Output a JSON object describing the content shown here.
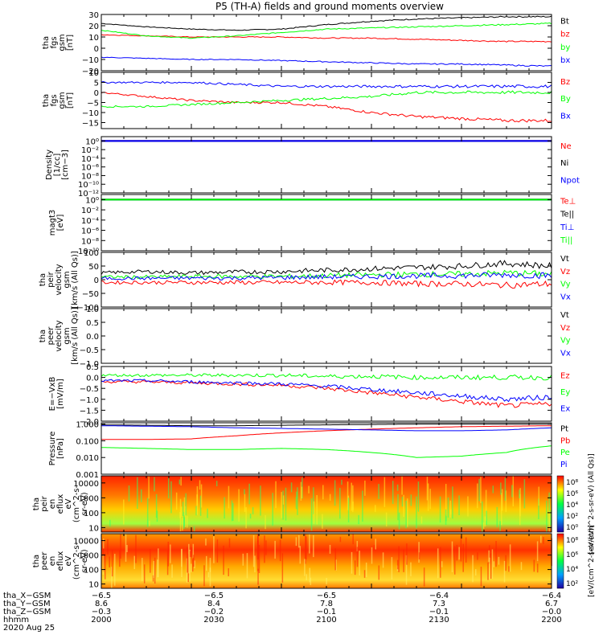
{
  "title": "P5 (TH-A) fields and ground moments overview",
  "colors": {
    "black": "#000000",
    "red": "#ff0000",
    "green": "#00ff00",
    "blue": "#0000ff"
  },
  "chart_data": [
    {
      "type": "line",
      "ylabel": [
        "tha",
        "fgs",
        "gsm",
        "[nT]"
      ],
      "ylim": [
        -20,
        30
      ],
      "yticks": [
        "30",
        "20",
        "10",
        "0",
        "−10",
        "−20"
      ],
      "ytick_values": [
        30,
        20,
        10,
        0,
        -10,
        -20
      ],
      "legend": [
        "Bt",
        "bz",
        "by",
        "bx"
      ],
      "legend_colors": [
        "black",
        "red",
        "green",
        "blue"
      ],
      "series": [
        {
          "name": "Bt",
          "color": "black",
          "values": [
            22,
            19,
            17,
            16,
            17,
            21,
            24,
            26,
            27,
            28,
            28
          ]
        },
        {
          "name": "bz",
          "color": "red",
          "values": [
            12,
            11,
            10,
            10,
            10,
            9,
            9,
            8,
            7,
            6,
            6
          ]
        },
        {
          "name": "by",
          "color": "green",
          "values": [
            16,
            11,
            9,
            11,
            14,
            17,
            18,
            19,
            20,
            21,
            22
          ]
        },
        {
          "name": "bx",
          "color": "blue",
          "values": [
            -8,
            -9,
            -10,
            -10,
            -11,
            -12,
            -13,
            -14,
            -14,
            -15,
            -16
          ]
        }
      ]
    },
    {
      "type": "line",
      "ylabel": [
        "tha",
        "fgs",
        "gsm",
        "[nT]"
      ],
      "ylim": [
        -18,
        10
      ],
      "yticks": [
        "10",
        "5",
        "0",
        "−5",
        "−10",
        "−15"
      ],
      "ytick_values": [
        10,
        5,
        0,
        -5,
        -10,
        -15
      ],
      "legend": [
        "Bz",
        "By",
        "Bx"
      ],
      "legend_colors": [
        "red",
        "green",
        "blue"
      ],
      "series": [
        {
          "name": "Bz",
          "color": "red",
          "values": [
            0,
            -2,
            -4,
            -5,
            -5,
            -7,
            -10,
            -12,
            -13,
            -14,
            -14
          ]
        },
        {
          "name": "By",
          "color": "green",
          "values": [
            -7,
            -7,
            -6,
            -5,
            -4,
            -3,
            -2,
            0,
            0,
            0,
            0
          ]
        },
        {
          "name": "Bx",
          "color": "blue",
          "values": [
            5,
            5,
            5,
            4,
            3,
            3,
            3,
            3,
            3,
            3,
            3
          ]
        }
      ]
    },
    {
      "type": "line",
      "ylabel": [
        "Density",
        "[1/cc]",
        "[cm−3]"
      ],
      "scale": "log",
      "ylim": [
        1e-12,
        10
      ],
      "yticks": [
        "10⁰",
        "10⁻²",
        "10⁻⁴",
        "10⁻⁶",
        "10⁻⁸",
        "10⁻¹⁰",
        "10⁻¹²"
      ],
      "ytick_values": [
        1,
        0.01,
        0.0001,
        1e-06,
        1e-08,
        1e-10,
        1e-12
      ],
      "legend": [
        "Ne",
        "Ni",
        "Npot"
      ],
      "legend_colors": [
        "red",
        "black",
        "blue"
      ],
      "series": [
        {
          "name": "Ne",
          "color": "red",
          "values": [
            1,
            1,
            1,
            1,
            1,
            1,
            1,
            1,
            1,
            1,
            1
          ]
        },
        {
          "name": "Ni",
          "color": "black",
          "values": [
            1,
            1,
            1,
            1,
            1,
            1,
            1,
            1,
            1,
            1,
            1
          ]
        },
        {
          "name": "Npot",
          "color": "blue",
          "values": [
            1,
            1,
            1,
            1,
            1,
            1,
            1,
            1,
            1,
            1,
            1
          ]
        }
      ]
    },
    {
      "type": "line",
      "ylabel": [
        "magt3",
        "[eV]"
      ],
      "scale": "log",
      "ylim": [
        1e-10,
        10
      ],
      "yticks": [
        "10⁰",
        "10⁻²",
        "10⁻⁴",
        "10⁻⁶",
        "10⁻⁸",
        "10⁻¹⁰"
      ],
      "ytick_values": [
        1,
        0.01,
        0.0001,
        1e-06,
        1e-08,
        1e-10
      ],
      "legend": [
        "Te⊥",
        "Te||",
        "Ti⊥",
        "Ti||"
      ],
      "legend_colors": [
        "red",
        "black",
        "blue",
        "green"
      ],
      "series": [
        {
          "name": "Te⊥",
          "color": "red",
          "values": [
            1,
            1,
            1,
            1,
            1,
            1,
            1,
            1,
            1,
            1,
            1
          ]
        },
        {
          "name": "Te||",
          "color": "black",
          "values": [
            1,
            1,
            1,
            1,
            1,
            1,
            1,
            1,
            1,
            1,
            1
          ]
        },
        {
          "name": "Ti⊥",
          "color": "blue",
          "values": [
            1,
            1,
            1,
            1,
            1,
            1,
            1,
            1,
            1,
            1,
            1
          ]
        },
        {
          "name": "Ti||",
          "color": "green",
          "values": [
            1,
            1,
            1,
            1,
            1,
            1,
            1,
            1,
            1,
            1,
            1
          ]
        }
      ]
    },
    {
      "type": "line",
      "ylabel": [
        "tha",
        "peir",
        "velocity",
        "gsm",
        "[km/s (All Qs)]"
      ],
      "ylim": [
        -100,
        100
      ],
      "yticks": [
        "100",
        "50",
        "0",
        "−50",
        "−100"
      ],
      "ytick_values": [
        100,
        50,
        0,
        -50,
        -100
      ],
      "legend": [
        "Vt",
        "Vz",
        "Vy",
        "Vx"
      ],
      "legend_colors": [
        "black",
        "red",
        "green",
        "blue"
      ],
      "series": [
        {
          "name": "Vt",
          "color": "black",
          "values": [
            25,
            30,
            25,
            28,
            30,
            35,
            40,
            45,
            50,
            60,
            50
          ]
        },
        {
          "name": "Vz",
          "color": "red",
          "values": [
            -10,
            -10,
            -10,
            -10,
            -10,
            -10,
            -10,
            -15,
            -15,
            -20,
            -15
          ]
        },
        {
          "name": "Vy",
          "color": "green",
          "values": [
            10,
            10,
            12,
            12,
            12,
            15,
            18,
            20,
            20,
            25,
            20
          ]
        },
        {
          "name": "Vx",
          "color": "blue",
          "values": [
            5,
            5,
            6,
            6,
            8,
            10,
            12,
            14,
            15,
            18,
            15
          ]
        }
      ]
    },
    {
      "type": "line",
      "ylabel": [
        "tha",
        "peer",
        "velocity",
        "gsm",
        "[km/s (All Qs)]"
      ],
      "ylim": [
        -1,
        1
      ],
      "yticks": [
        "1.0",
        "0.5",
        "0.0",
        "−0.5",
        "−1.0"
      ],
      "ytick_values": [
        1,
        0.5,
        0,
        -0.5,
        -1
      ],
      "legend": [
        "Vt",
        "Vz",
        "Vy",
        "Vx"
      ],
      "legend_colors": [
        "black",
        "red",
        "green",
        "blue"
      ],
      "series": []
    },
    {
      "type": "line",
      "ylabel": [
        "E=−VxB",
        "[mV/m]"
      ],
      "ylim": [
        -2,
        0.5
      ],
      "yticks": [
        "0.5",
        "0.0",
        "−0.5",
        "−1.0",
        "−1.5",
        "−2.0"
      ],
      "ytick_values": [
        0.5,
        0,
        -0.5,
        -1,
        -1.5,
        -2
      ],
      "legend": [
        "Ez",
        "Ey",
        "Ex"
      ],
      "legend_colors": [
        "red",
        "green",
        "blue"
      ],
      "series": [
        {
          "name": "Ez",
          "color": "red",
          "values": [
            -0.2,
            -0.2,
            -0.25,
            -0.3,
            -0.35,
            -0.5,
            -0.7,
            -0.9,
            -1.1,
            -1.3,
            -1.2
          ]
        },
        {
          "name": "Ey",
          "color": "green",
          "values": [
            0.1,
            0.1,
            0.1,
            0.1,
            0.1,
            0.05,
            0.05,
            0,
            0,
            0,
            0
          ]
        },
        {
          "name": "Ex",
          "color": "blue",
          "values": [
            -0.15,
            -0.15,
            -0.2,
            -0.25,
            -0.3,
            -0.4,
            -0.55,
            -0.7,
            -0.85,
            -1.0,
            -0.9
          ]
        }
      ]
    },
    {
      "type": "line",
      "ylabel": [
        "Pressure",
        "[nPa]"
      ],
      "scale": "log",
      "ylim": [
        0.001,
        1.2
      ],
      "yticks": [
        "1.000",
        "0.100",
        "0.010",
        "0.001"
      ],
      "ytick_values": [
        1,
        0.1,
        0.01,
        0.001
      ],
      "legend": [
        "Pt",
        "Pb",
        "Pe",
        "Pi"
      ],
      "legend_colors": [
        "black",
        "red",
        "green",
        "blue"
      ],
      "series": [
        {
          "name": "Pt",
          "color": "black",
          "values": [
            0.9,
            0.85,
            0.8,
            0.8,
            0.85,
            0.9,
            0.95,
            1.0,
            1.0,
            1.0,
            1.0
          ]
        },
        {
          "name": "Pb",
          "color": "red",
          "values": [
            0.12,
            0.12,
            0.13,
            0.2,
            0.3,
            0.4,
            0.5,
            0.6,
            0.7,
            0.75,
            0.8
          ]
        },
        {
          "name": "Pe",
          "color": "green",
          "values": [
            0.04,
            0.035,
            0.03,
            0.03,
            0.035,
            0.03,
            0.02,
            0.01,
            0.012,
            0.02,
            0.05
          ]
        },
        {
          "name": "Pi",
          "color": "blue",
          "values": [
            0.8,
            0.75,
            0.7,
            0.6,
            0.55,
            0.5,
            0.45,
            0.4,
            0.4,
            0.45,
            0.6
          ]
        }
      ]
    },
    {
      "type": "heatmap",
      "ylabel": [
        "tha",
        "peir",
        "en",
        "eflux",
        "eV",
        "(cm^2-s-",
        "sr-eV)"
      ],
      "scale": "log",
      "ylim": [
        5,
        30000
      ],
      "yticks": [
        "10000",
        "1000",
        "100",
        "10"
      ],
      "ytick_values": [
        10000,
        1000,
        100,
        10
      ],
      "colorbar_ticks": [
        "10⁸",
        "10⁶",
        "10⁴",
        "10²",
        "10⁰"
      ],
      "colorbar_label": "[eV/(cm^2-s-sr-eV) (All Qs)]"
    },
    {
      "type": "heatmap",
      "ylabel": [
        "tha",
        "peer",
        "en",
        "eflux",
        "eV",
        "(cm^2-s-",
        "sr-eV)"
      ],
      "scale": "log",
      "ylim": [
        5,
        30000
      ],
      "yticks": [
        "10000",
        "1000",
        "100",
        "10"
      ],
      "ytick_values": [
        10000,
        1000,
        100,
        10
      ],
      "colorbar_ticks": [
        "10⁸",
        "10⁶",
        "10⁴",
        "10²"
      ],
      "colorbar_label": "[eV/(cm^2-s-sr-eV)]"
    }
  ],
  "xaxis": {
    "rows": [
      {
        "label": "tha_X−GSM",
        "values": [
          "−6.5",
          "−6.5",
          "−6.5",
          "−6.4",
          "−6.4"
        ]
      },
      {
        "label": "tha_Y−GSM",
        "values": [
          "8.6",
          "8.4",
          "7.8",
          "7.3",
          "6.7"
        ]
      },
      {
        "label": "tha_Z−GSM",
        "values": [
          "−0.3",
          "−0.2",
          "−0.1",
          "−0.1",
          "−0.0"
        ]
      },
      {
        "label": "hhmm",
        "values": [
          "2000",
          "2030",
          "2100",
          "2130",
          "2200"
        ]
      }
    ],
    "date": "2020 Aug 25"
  }
}
